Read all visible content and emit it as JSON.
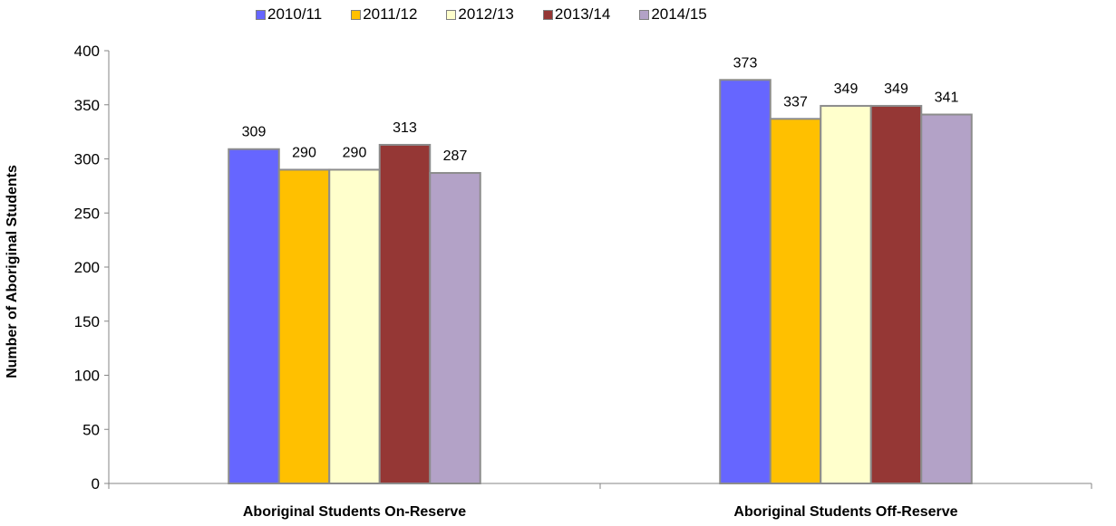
{
  "chart_data": {
    "type": "bar",
    "categories": [
      "Aboriginal Students On-Reserve",
      "Aboriginal Students Off-Reserve"
    ],
    "series": [
      {
        "name": "2010/11",
        "values": [
          309,
          373
        ],
        "color": "#6666ff"
      },
      {
        "name": "2011/12",
        "values": [
          290,
          337
        ],
        "color": "#ffc000"
      },
      {
        "name": "2012/13",
        "values": [
          290,
          349
        ],
        "color": "#ffffcc"
      },
      {
        "name": "2013/14",
        "values": [
          313,
          349
        ],
        "color": "#953735"
      },
      {
        "name": "2014/15",
        "values": [
          287,
          341
        ],
        "color": "#b3a2c7"
      }
    ],
    "title": "",
    "xlabel": "",
    "ylabel": "Number of Aboriginal Students",
    "ylim": [
      0,
      400
    ],
    "yticks": [
      "0",
      "50",
      "100",
      "150",
      "200",
      "250",
      "300",
      "350",
      "400"
    ],
    "legend_position": "top",
    "grid": false
  }
}
